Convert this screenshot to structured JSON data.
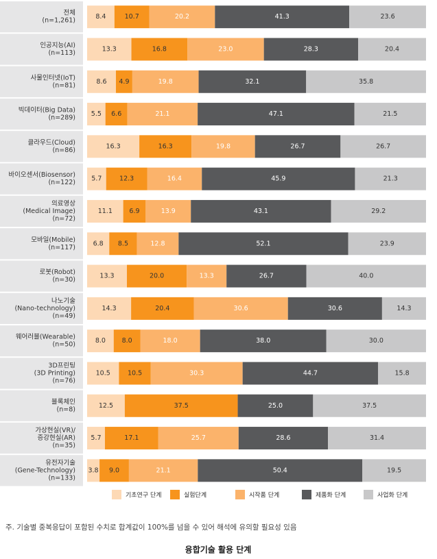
{
  "chart_data": {
    "type": "stacked-bar-horizontal",
    "title": "융합기술 활용 단계",
    "note": "주. 기술별 중복응답이 포함된 수치로 합계값이 100%를 넘을 수 있어 해석에 유의할 필요성 있음",
    "categories": [
      [
        "전체",
        "(n=1,261)"
      ],
      [
        "인공지능(AI)",
        "(n=113)"
      ],
      [
        "사물인터넷(IoT)",
        "(n=81)"
      ],
      [
        "빅데이터(Big Data)",
        "(n=289)"
      ],
      [
        "클라우드(Cloud)",
        "(n=86)"
      ],
      [
        "바이오센서(Biosensor)",
        "(n=122)"
      ],
      [
        "의료영상",
        "(Medical Image)",
        "(n=72)"
      ],
      [
        "모바일(Mobile)",
        "(n=117)"
      ],
      [
        "로봇(Robot)",
        "(n=30)"
      ],
      [
        "나노기술",
        "(Nano-technology)",
        "(n=49)"
      ],
      [
        "웨어러블(Wearable)",
        "(n=50)"
      ],
      [
        "3D프린팅",
        "(3D Printing)",
        "(n=76)"
      ],
      [
        "블록체인",
        "(n=8)"
      ],
      [
        "가상현실(VR)/",
        "증강현실(AR)",
        "(n=35)"
      ],
      [
        "유전자기술",
        "(Gene-Technology)",
        "(n=133)"
      ]
    ],
    "series": [
      {
        "name": "기초연구 단계",
        "color": "#fdd9b5",
        "text_color": "#333333",
        "values": [
          8.4,
          13.3,
          8.6,
          5.5,
          16.3,
          5.7,
          11.1,
          6.8,
          13.3,
          14.3,
          8.0,
          10.5,
          12.5,
          5.7,
          3.8
        ],
        "value_labels": [
          "8.4",
          "13.3",
          "8.6",
          "5.5",
          "16.3",
          "5.7",
          "11.1",
          "6.8",
          "13.3",
          "14.3",
          "8.0",
          "10.5",
          "12.5",
          "5.7",
          "3.8"
        ]
      },
      {
        "name": "실험단계",
        "color": "#f7941d",
        "text_color": "#333333",
        "values": [
          10.7,
          16.8,
          4.9,
          6.6,
          16.3,
          12.3,
          6.9,
          8.5,
          20.0,
          20.4,
          8.0,
          10.5,
          37.5,
          17.1,
          9.0
        ],
        "value_labels": [
          "10.7",
          "16.8",
          "4.9",
          "6.6",
          "16.3",
          "12.3",
          "6.9",
          "8.5",
          "20.0",
          "20.4",
          "8.0",
          "10.5",
          "37.5",
          "17.1",
          "9.0"
        ]
      },
      {
        "name": "시작품 단계",
        "color": "#fbb36b",
        "text_color": "#ffffff",
        "values": [
          20.2,
          23.0,
          19.8,
          21.1,
          19.8,
          16.4,
          13.9,
          12.8,
          13.3,
          30.6,
          18.0,
          30.3,
          null,
          25.7,
          21.1
        ],
        "value_labels": [
          "20.2",
          "23.0",
          "19.8",
          "21.1",
          "19.8",
          "16.4",
          "13.9",
          "12.8",
          "13.3",
          "30.6",
          "18.0",
          "30.3",
          null,
          "25.7",
          "21.1"
        ]
      },
      {
        "name": "제품화 단계",
        "color": "#58595b",
        "text_color": "#ffffff",
        "values": [
          41.3,
          28.3,
          32.1,
          47.1,
          26.7,
          45.9,
          43.1,
          52.1,
          26.7,
          30.6,
          38.0,
          44.7,
          25.0,
          28.6,
          50.4
        ],
        "value_labels": [
          "41.3",
          "28.3",
          "32.1",
          "47.1",
          "26.7",
          "45.9",
          "43.1",
          "52.1",
          "26.7",
          "30.6",
          "38.0",
          "44.7",
          "25.0",
          "28.6",
          "50.4"
        ]
      },
      {
        "name": "사업화 단계",
        "color": "#c8c8c9",
        "text_color": "#333333",
        "values": [
          23.6,
          20.4,
          35.8,
          21.5,
          26.7,
          21.3,
          29.2,
          23.9,
          40.0,
          14.3,
          30.0,
          15.8,
          37.5,
          31.4,
          19.5
        ],
        "value_labels": [
          "23.6",
          "20.4",
          "35.8",
          "21.5",
          "26.7",
          "21.3",
          "29.2",
          "23.9",
          "40.0",
          "14.3",
          "30.0",
          "15.8",
          "37.5",
          "31.4",
          "19.5"
        ]
      }
    ]
  }
}
